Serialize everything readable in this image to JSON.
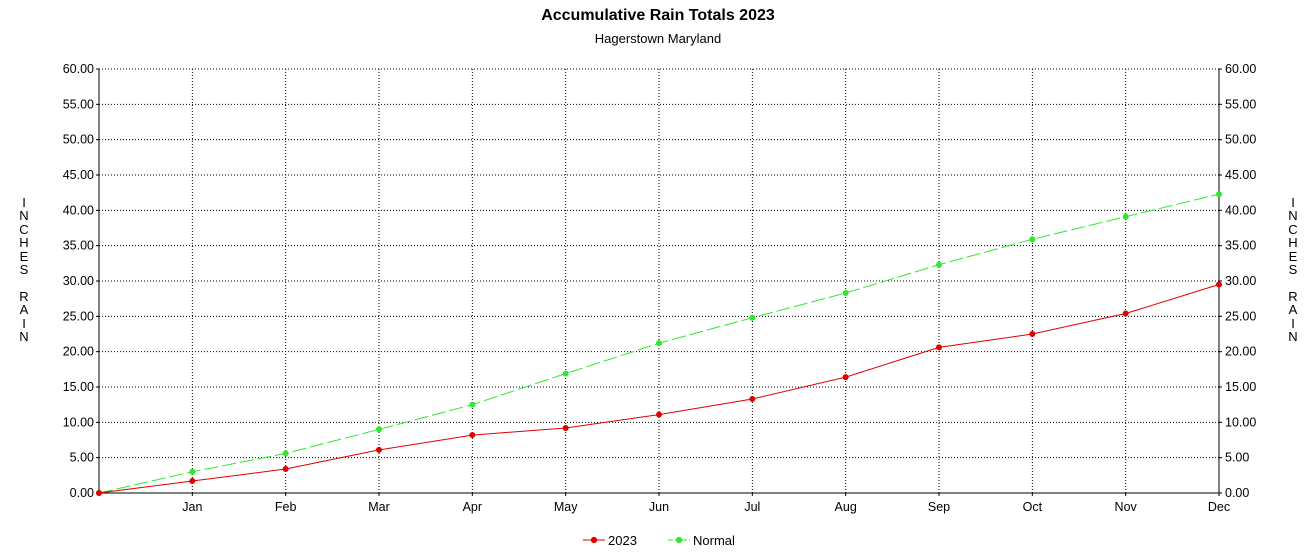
{
  "chart_data": {
    "type": "line",
    "title": "Accumulative Rain Totals 2023",
    "subtitle": "Hagerstown Maryland",
    "ylabel": "INCHES RAIN",
    "xlabel": "",
    "x": [
      "",
      "Jan",
      "Feb",
      "Mar",
      "Apr",
      "May",
      "Jun",
      "Jul",
      "Aug",
      "Sep",
      "Oct",
      "Nov",
      "Dec"
    ],
    "ylim": [
      0,
      60
    ],
    "ytick_step": 5,
    "y_axes": "left-and-right",
    "grid": true,
    "legend_position": "bottom-center",
    "series": [
      {
        "name": "2023",
        "color": "#e00000",
        "line_style": "solid",
        "values": [
          0,
          1.7,
          3.4,
          6.1,
          8.2,
          9.2,
          11.1,
          13.3,
          16.4,
          20.6,
          22.5,
          25.4,
          29.5
        ]
      },
      {
        "name": "Normal",
        "color": "#2ee82e",
        "line_style": "dashed",
        "values": [
          0,
          3.0,
          5.6,
          9.0,
          12.5,
          16.9,
          21.2,
          24.8,
          28.3,
          32.3,
          35.9,
          39.1,
          42.3
        ]
      }
    ]
  }
}
